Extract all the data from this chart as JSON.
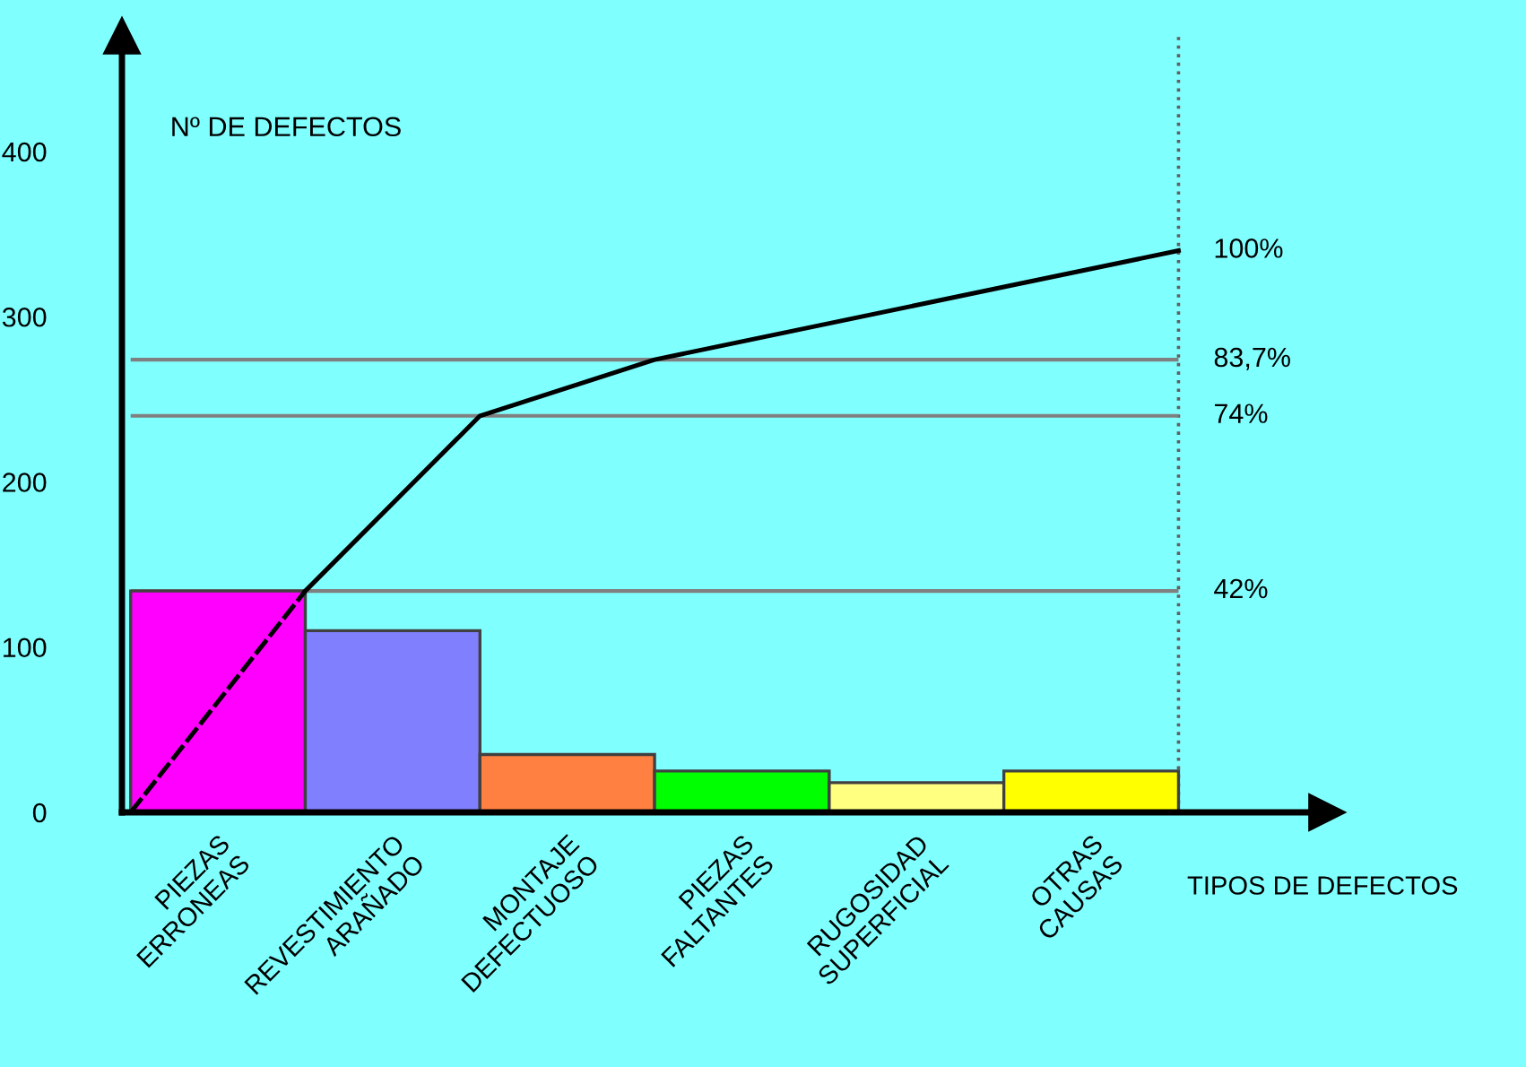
{
  "chart_data": {
    "type": "bar",
    "categories": [
      "PIEZAS\nERRONEAS",
      "REVESTIMIENTO\nARAÑADO",
      "MONTAJE\nDEFECTUOSO",
      "PIEZAS\nFALTANTES",
      "RUGOSIDAD\nSUPERFICIAL",
      "OTRAS\nCAUSAS"
    ],
    "series": [
      {
        "colors": [
          "#ff00ff",
          "#8080ff",
          "#ff8040",
          "#00ff00",
          "#ffff80",
          "#ffff00"
        ],
        "values": [
          134,
          110,
          35,
          25,
          18,
          25
        ]
      },
      {
        "type": "line",
        "color": "#000000",
        "values": [
          134,
          240,
          274,
          296,
          318,
          340
        ]
      }
    ],
    "xlabel": "TIPOS DE DEFECTOS",
    "ylabel": "Nº DE DEFECTOS",
    "ylim": [
      0,
      470
    ],
    "yticks": [
      0,
      100,
      200,
      300,
      400
    ],
    "ref_lines": [
      {
        "axis": "y",
        "value": 134,
        "color": "#808080",
        "line_style": "solid"
      },
      {
        "axis": "y",
        "value": 240,
        "color": "#808080",
        "line_style": "solid"
      },
      {
        "axis": "y",
        "value": 274,
        "color": "#808080",
        "line_style": "solid"
      }
    ],
    "annotations": [
      "42%",
      "74%",
      "83,7%",
      "100%"
    ],
    "grid": false
  }
}
